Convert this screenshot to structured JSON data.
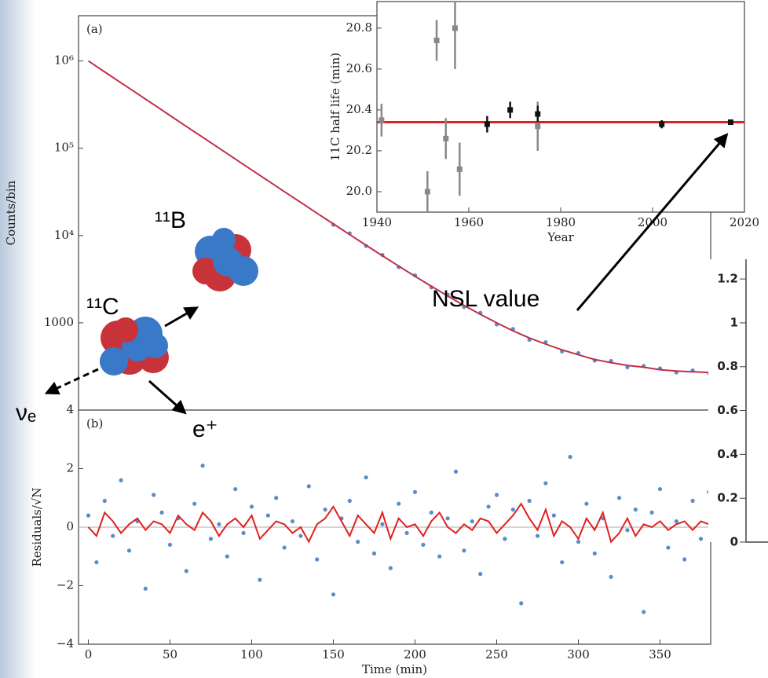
{
  "chart_data": [
    {
      "type": "line",
      "panel_label": "(a)",
      "ylabel": "Counts/bin",
      "log_y": true,
      "xlim": [
        -6,
        381
      ],
      "ylim": [
        100,
        3300000
      ],
      "yticks": [
        {
          "value": 1000000,
          "label": "10⁶"
        },
        {
          "value": 100000,
          "label": "10⁵"
        },
        {
          "value": 10000,
          "label": "10⁴"
        },
        1000
      ],
      "series": [
        {
          "type": "scatter",
          "color": "#5b8cc8",
          "x": [
            150,
            160,
            170,
            180,
            190,
            200,
            210,
            220,
            230,
            240,
            250,
            260,
            270,
            280,
            290,
            300,
            310,
            320,
            330,
            340,
            350,
            360,
            370,
            380
          ],
          "values": [
            13300,
            10600,
            7600,
            6000,
            4350,
            3500,
            2550,
            2100,
            1520,
            1300,
            960,
            850,
            640,
            600,
            470,
            450,
            370,
            365,
            310,
            320,
            300,
            270,
            285,
            265
          ]
        },
        {
          "type": "line",
          "color": "#c0304a",
          "x": [
            0,
            10,
            20,
            30,
            40,
            50,
            60,
            70,
            80,
            90,
            100,
            110,
            120,
            130,
            140,
            150,
            160,
            170,
            180,
            190,
            200,
            210,
            220,
            230,
            240,
            250,
            260,
            270,
            280,
            290,
            300,
            310,
            320,
            330,
            340,
            350,
            360,
            370,
            380
          ],
          "values": [
            1000250,
            750150,
            562550,
            421950,
            316450,
            237350,
            178050,
            133650,
            100250,
            75250,
            56480,
            42420,
            31870,
            23960,
            18030,
            13590,
            10250,
            7750,
            5870,
            4470,
            3410,
            2620,
            2030,
            1580,
            1250,
            1000,
            810,
            670,
            570,
            490,
            430,
            380,
            350,
            325,
            310,
            290,
            280,
            275,
            270
          ]
        }
      ]
    },
    {
      "type": "scatter",
      "panel_label": "(b)",
      "xlabel": "Time (min)",
      "ylabel": "Residuals/√N",
      "xlim": [
        -6,
        381
      ],
      "ylim": [
        -4,
        4
      ],
      "reference_line": 0,
      "xticks": [
        0,
        50,
        100,
        150,
        200,
        250,
        300,
        350
      ],
      "yticks": [
        {
          "value": -4,
          "label": "−4"
        },
        {
          "value": -2,
          "label": "−2"
        },
        0,
        2,
        4
      ],
      "x": [
        0,
        5,
        10,
        15,
        20,
        25,
        30,
        35,
        40,
        45,
        50,
        55,
        60,
        65,
        70,
        75,
        80,
        85,
        90,
        95,
        100,
        105,
        110,
        115,
        120,
        125,
        130,
        135,
        140,
        145,
        150,
        155,
        160,
        165,
        170,
        175,
        180,
        185,
        190,
        195,
        200,
        205,
        210,
        215,
        220,
        225,
        230,
        235,
        240,
        245,
        250,
        255,
        260,
        265,
        270,
        275,
        280,
        285,
        290,
        295,
        300,
        305,
        310,
        315,
        320,
        325,
        330,
        335,
        340,
        345,
        350,
        355,
        360,
        365,
        370,
        375,
        380
      ],
      "series": [
        {
          "type": "scatter",
          "color": "#5b8cc8",
          "values": [
            0.4,
            -1.2,
            0.9,
            -0.3,
            1.6,
            -0.8,
            0.2,
            -2.1,
            1.1,
            0.5,
            -0.6,
            0.3,
            -1.5,
            0.8,
            2.1,
            -0.4,
            0.1,
            -1.0,
            1.3,
            -0.2,
            0.7,
            -1.8,
            0.4,
            1.0,
            -0.7,
            0.2,
            -0.3,
            1.4,
            -1.1,
            0.6,
            -2.3,
            0.3,
            0.9,
            -0.5,
            1.7,
            -0.9,
            0.1,
            -1.4,
            0.8,
            -0.2,
            1.2,
            -0.6,
            0.5,
            -1.0,
            0.3,
            1.9,
            -0.8,
            0.2,
            -1.6,
            0.7,
            1.1,
            -0.4,
            0.6,
            -2.6,
            0.9,
            -0.3,
            1.5,
            0.4,
            -1.2,
            2.4,
            -0.5,
            0.8,
            -0.9,
            0.3,
            -1.7,
            1.0,
            -0.1,
            0.6,
            -2.9,
            0.5,
            1.3,
            -0.7,
            0.2,
            -1.1,
            0.9,
            -0.4,
            1.2
          ]
        },
        {
          "type": "line",
          "color": "#e02020",
          "values": [
            0,
            -0.3,
            0.5,
            0.2,
            -0.2,
            0.1,
            0.3,
            -0.1,
            0.2,
            0.1,
            -0.2,
            0.4,
            0.1,
            -0.1,
            0.5,
            0.2,
            -0.3,
            0.1,
            0.3,
            0,
            0.4,
            -0.4,
            -0.1,
            0.2,
            0.1,
            -0.2,
            0,
            -0.5,
            0.1,
            0.3,
            0.7,
            0.2,
            -0.3,
            0.4,
            0.1,
            -0.2,
            0.5,
            -0.4,
            0.3,
            0,
            0.1,
            -0.3,
            0.2,
            0.5,
            0,
            -0.2,
            0.1,
            -0.1,
            0.3,
            0.2,
            -0.2,
            0.1,
            0.4,
            0.8,
            0.3,
            -0.1,
            0.6,
            -0.3,
            0.2,
            0,
            -0.4,
            0.3,
            -0.1,
            0.5,
            -0.5,
            -0.2,
            0.3,
            -0.3,
            0.1,
            0,
            0.2,
            -0.1,
            0.1,
            0.2,
            -0.1,
            0.2,
            0.1
          ]
        }
      ]
    },
    {
      "type": "axis",
      "ylim": [
        0,
        1.29
      ],
      "yticks": [
        0,
        0.2,
        0.4,
        0.6,
        0.8,
        1,
        1.2
      ]
    },
    {
      "type": "scatter",
      "xlabel": "Year",
      "ylabel": "11C half life (min)",
      "xlim": [
        1940,
        2020
      ],
      "ylim": [
        19.9,
        20.93
      ],
      "reference_line": 20.34,
      "reference_color": "#e02020",
      "xticks": [
        1940,
        1960,
        1980,
        2000,
        2020
      ],
      "yticks": [
        {
          "value": 20,
          "label": "20.0"
        },
        20.2,
        20.4,
        20.6,
        20.8
      ],
      "series": [
        {
          "type": "errorbar",
          "color": "#888888",
          "x": [
            1941,
            1951,
            1953,
            1955,
            1957,
            1958,
            1975
          ],
          "values": [
            20.35,
            20.0,
            20.74,
            20.26,
            20.8,
            20.11,
            20.32
          ],
          "errors": [
            0.08,
            0.1,
            0.1,
            0.1,
            0.2,
            0.13,
            0.12
          ]
        },
        {
          "type": "errorbar",
          "color": "#111111",
          "x": [
            1964,
            1969,
            1975,
            2002,
            2017
          ],
          "values": [
            20.33,
            20.4,
            20.38,
            20.33,
            20.34
          ],
          "errors": [
            0.04,
            0.04,
            0.04,
            0.02,
            0.01
          ]
        }
      ]
    }
  ],
  "annotations": {
    "nsl": "NSL value",
    "carbon": "¹¹C",
    "boron": "¹¹B",
    "neutrino": "νₑ",
    "positron": "e⁺"
  }
}
